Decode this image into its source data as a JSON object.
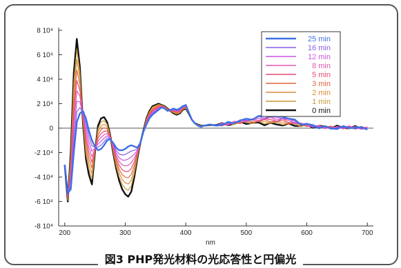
{
  "caption": "図3  PHP発光材料の光応答性と円偏光",
  "chart_data": {
    "type": "line",
    "xlabel": "nm",
    "ylabel": "",
    "xlim": [
      190,
      710
    ],
    "ylim": [
      -80000,
      80000
    ],
    "x_ticks": [
      {
        "value": 200,
        "label": "200"
      },
      {
        "value": 300,
        "label": "300"
      },
      {
        "value": 400,
        "label": "400"
      },
      {
        "value": 500,
        "label": "500"
      },
      {
        "value": 600,
        "label": "600"
      },
      {
        "value": 700,
        "label": "700"
      }
    ],
    "y_ticks": [
      {
        "value": 80000,
        "label": "8 10⁴"
      },
      {
        "value": 60000,
        "label": "6 10⁴"
      },
      {
        "value": 40000,
        "label": "4 10⁴"
      },
      {
        "value": 20000,
        "label": "2 10⁴"
      },
      {
        "value": 0,
        "label": "0"
      },
      {
        "value": -20000,
        "label": "-2 10⁴"
      },
      {
        "value": -40000,
        "label": "-4 10⁴"
      },
      {
        "value": -60000,
        "label": "-6 10⁴"
      },
      {
        "value": -80000,
        "label": "-8 10⁴"
      }
    ],
    "grid": false,
    "legend_position": "top-right",
    "series": [
      {
        "name": "25 min",
        "color": "#3f6fe6"
      },
      {
        "name": "16 min",
        "color": "#8a5ee8"
      },
      {
        "name": "12 min",
        "color": "#cc55dd"
      },
      {
        "name": "8 min",
        "color": "#e255b0"
      },
      {
        "name": "5 min",
        "color": "#e84a70"
      },
      {
        "name": "3 min",
        "color": "#e2663e"
      },
      {
        "name": "2 min",
        "color": "#d98a3a"
      },
      {
        "name": "1 min",
        "color": "#c9983a"
      },
      {
        "name": "0 min",
        "color": "#111111"
      }
    ],
    "base_curve": {
      "x": [
        200,
        205,
        210,
        215,
        220,
        225,
        230,
        235,
        240,
        245,
        250,
        255,
        260,
        265,
        270,
        275,
        280,
        285,
        290,
        295,
        300,
        305,
        310,
        315,
        320,
        325,
        330,
        335,
        340,
        345,
        350,
        355,
        360,
        365,
        370,
        375,
        380,
        385,
        390,
        395,
        400,
        405,
        410,
        415,
        420,
        425,
        430,
        440,
        450,
        460,
        470,
        480,
        490,
        500,
        510,
        520,
        530,
        540,
        550,
        560,
        570,
        580,
        590,
        600,
        610,
        620,
        630,
        640,
        650,
        660,
        670,
        680,
        690,
        700
      ],
      "y_end": [
        -30000,
        -60000,
        -20000,
        45000,
        73000,
        50000,
        5000,
        -25000,
        -38000,
        -46000,
        -20000,
        2000,
        8000,
        9000,
        5000,
        -5000,
        -20000,
        -33000,
        -43000,
        -50000,
        -54000,
        -56000,
        -52000,
        -40000,
        -25000,
        -12000,
        -2000,
        8000,
        14000,
        18000,
        19000,
        20000,
        19000,
        18000,
        16000,
        14000,
        12000,
        11000,
        12000,
        15000,
        16000,
        12000,
        7000,
        4000,
        3000,
        2000,
        2000,
        2500,
        2500,
        3000,
        3000,
        4000,
        4000,
        4500,
        4000,
        4000,
        3500,
        3500,
        3000,
        3000,
        2500,
        2500,
        2000,
        2000,
        1500,
        1500,
        1000,
        1000,
        1000,
        500,
        500,
        500,
        500,
        0
      ],
      "y_start": [
        -30000,
        -53000,
        -50000,
        -20000,
        5000,
        12000,
        14000,
        8000,
        -2000,
        -10000,
        -15000,
        -18000,
        -17000,
        -14000,
        -10000,
        -9000,
        -12000,
        -16000,
        -18000,
        -18000,
        -17000,
        -15000,
        -14000,
        -15000,
        -16000,
        -12000,
        -3000,
        3000,
        8000,
        11000,
        13000,
        15000,
        17000,
        16000,
        14000,
        15000,
        16000,
        15000,
        16000,
        18000,
        19000,
        13000,
        7000,
        4000,
        2000,
        1000,
        2000,
        3000,
        2000,
        3000,
        4000,
        5000,
        6000,
        7000,
        8000,
        9000,
        10000,
        10500,
        9000,
        10000,
        8000,
        6000,
        4000,
        3000,
        2000,
        1000,
        500,
        0,
        0,
        500,
        1000,
        0,
        0,
        0
      ]
    }
  }
}
